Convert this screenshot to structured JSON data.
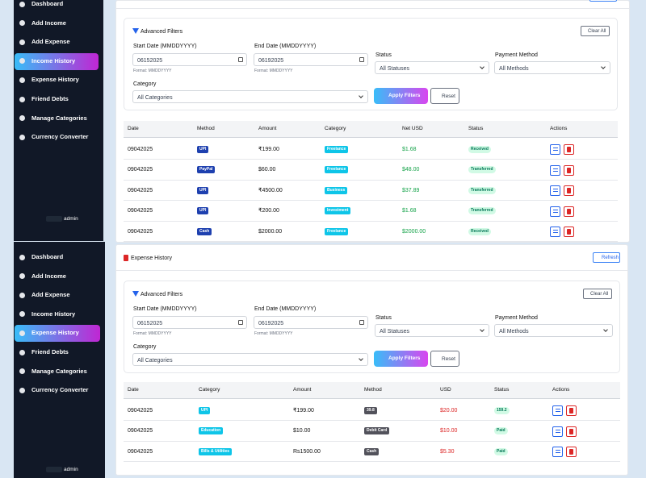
{
  "screens": [
    {
      "sidebar": {
        "menu": [
          "Dashboard",
          "Add Income",
          "Add Expense",
          "Income History",
          "Expense History",
          "Friend Debts",
          "Manage Categories",
          "Currency Converter"
        ],
        "active": 3,
        "user": "admin"
      },
      "filters": {
        "title": "Advanced Filters",
        "clear": "Clear All",
        "start_label": "Start Date (MMDDYYYY)",
        "start_value": "06152025",
        "start_hint": "Format: MMDDYYYY",
        "end_label": "End Date (MMDDYYYY)",
        "end_value": "06192025",
        "end_hint": "Format: MMDDYYYY",
        "status_label": "Status",
        "status_value": "All Statuses",
        "method_label": "Payment Method",
        "method_value": "All Methods",
        "category_label": "Category",
        "category_value": "All Categories",
        "apply": "Apply Filters",
        "reset": "Reset"
      },
      "table": {
        "columns": [
          "Date",
          "Method",
          "Amount",
          "Category",
          "Net USD",
          "Status",
          "Actions"
        ],
        "rows": [
          [
            "09042025",
            "UPI",
            "₹199.00",
            "Freelance",
            "$1.68",
            "Received"
          ],
          [
            "09042025",
            "PayPal",
            "$60.00",
            "Freelance",
            "$48.00",
            "Transferred"
          ],
          [
            "09042025",
            "UPI",
            "₹4500.00",
            "Business",
            "$37.89",
            "Transferred"
          ],
          [
            "09042025",
            "UPI",
            "₹200.00",
            "Investment",
            "$1.68",
            "Transferred"
          ],
          [
            "09042025",
            "Cash",
            "$2000.00",
            "Freelance",
            "$2000.00",
            "Received"
          ]
        ]
      }
    },
    {
      "sidebar": {
        "menu": [
          "Dashboard",
          "Add Income",
          "Add Expense",
          "Income History",
          "Expense History",
          "Friend Debts",
          "Manage Categories",
          "Currency Converter"
        ],
        "active": 4,
        "user": "admin"
      },
      "header": {
        "title": "Expense History",
        "refresh": "Refresh"
      },
      "filters": {
        "title": "Advanced Filters",
        "clear": "Clear All",
        "start_label": "Start Date (MMDDYYYY)",
        "start_value": "06152025",
        "start_hint": "Format: MMDDYYYY",
        "end_label": "End Date (MMDDYYYY)",
        "end_value": "06192025",
        "end_hint": "Format: MMDDYYYY",
        "status_label": "Status",
        "status_value": "All Statuses",
        "method_label": "Payment Method",
        "method_value": "All Methods",
        "category_label": "Category",
        "category_value": "All Categories",
        "apply": "Apply Filters",
        "reset": "Reset"
      },
      "table": {
        "columns": [
          "Date",
          "Category",
          "Amount",
          "Method",
          "USD",
          "Status",
          "Actions"
        ],
        "rows": [
          [
            "09042025",
            "UPI",
            "₹199.00",
            "39.8",
            "$20.00",
            "159.2"
          ],
          [
            "09042025",
            "Education",
            "$10.00",
            "Debit Card",
            "$10.00",
            "Paid"
          ],
          [
            "09042025",
            "Bills & Utilities",
            "Rs1500.00",
            "Cash",
            "$5.30",
            "Paid"
          ]
        ]
      }
    }
  ]
}
